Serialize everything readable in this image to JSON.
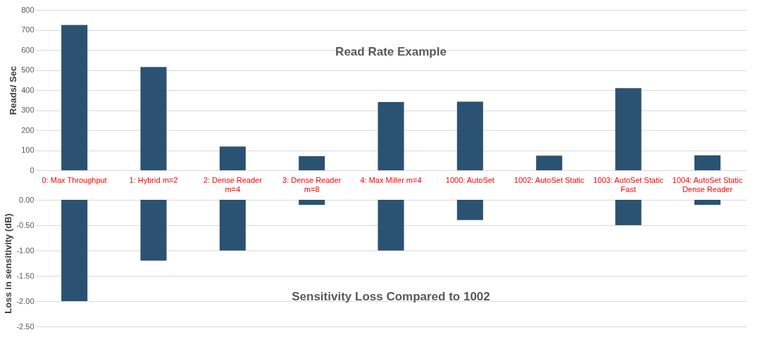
{
  "chart_data": [
    {
      "type": "bar",
      "title": "Read Rate Example",
      "ylabel": "Reads/ Sec",
      "categories": [
        "0: Max Throughput",
        "1: Hybrid m=2",
        "2: Dense Reader m=4",
        "3: Dense Reader m=8",
        "4: Max Miller m=4",
        "1000: AutoSet",
        "1002: AutoSet Static",
        "1003: AutoSet Static Fast",
        "1004: AutoSet Static Dense Reader"
      ],
      "series": [
        {
          "color": "#2b5272",
          "values": [
            725,
            515,
            118,
            70,
            340,
            342,
            73,
            410,
            75
          ]
        }
      ],
      "ylim": [
        0,
        800
      ],
      "yticks": [
        0,
        100,
        200,
        300,
        400,
        500,
        600,
        700,
        800
      ],
      "grid": "y",
      "legend": false
    },
    {
      "type": "bar",
      "title": "Sensitivity Loss Compared to 1002",
      "ylabel": "Loss in sensitivity  (dB)",
      "categories": [
        "0: Max Throughput",
        "1: Hybrid m=2",
        "2: Dense Reader m=4",
        "3: Dense Reader m=8",
        "4: Max Miller m=4",
        "1000: AutoSet",
        "1002: AutoSet Static",
        "1003: AutoSet Static Fast",
        "1004: AutoSet Static Dense Reader"
      ],
      "series": [
        {
          "color": "#2b5272",
          "values": [
            -2.0,
            -1.2,
            -1.0,
            -0.1,
            -1.0,
            -0.4,
            0,
            -0.5,
            -0.1
          ]
        }
      ],
      "ylim": [
        -2.5,
        0
      ],
      "yticks": [
        {
          "value": 0,
          "label": "0.00"
        },
        {
          "value": -0.5,
          "label": "-0.50"
        },
        {
          "value": -1,
          "label": "-1.00"
        },
        {
          "value": -1.5,
          "label": "-1.50"
        },
        {
          "value": -2,
          "label": "-2.00"
        },
        {
          "value": -2.5,
          "label": "-2.50"
        }
      ],
      "grid": "y",
      "legend": false,
      "tick_labels": "y"
    }
  ]
}
